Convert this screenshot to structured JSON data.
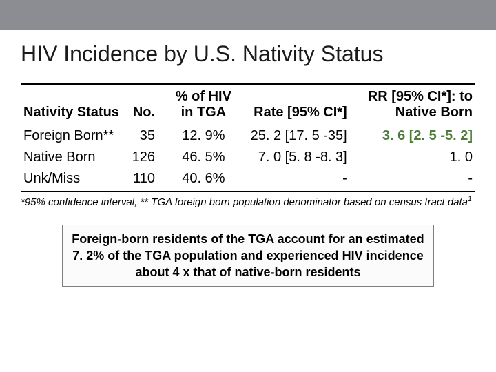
{
  "title": "HIV Incidence by U.S. Nativity Status",
  "topbar_color": "#8c8d92",
  "table": {
    "columns": [
      {
        "label": "Nativity Status",
        "align": "left"
      },
      {
        "label": "No.",
        "align": "right"
      },
      {
        "label": "% of HIV\nin TGA",
        "align": "center"
      },
      {
        "label": "Rate [95% CI*]",
        "align": "right"
      },
      {
        "label": "RR [95% CI*]: to\nNative Born",
        "align": "right"
      }
    ],
    "rows": [
      {
        "nativity": "Foreign Born**",
        "no": "35",
        "pct": "12. 9%",
        "rate": "25. 2 [17. 5 -35]",
        "rr": "3. 6 [2. 5 -5. 2]",
        "rr_highlight": true
      },
      {
        "nativity": "Native Born",
        "no": "126",
        "pct": "46. 5%",
        "rate": "7. 0 [5. 8 -8. 3]",
        "rr": "1. 0",
        "rr_highlight": false
      },
      {
        "nativity": "Unk/Miss",
        "no": "110",
        "pct": "40. 6%",
        "rate": "-",
        "rr": "-",
        "rr_highlight": false
      }
    ],
    "border_color": "#000000",
    "header_fontsize": 20,
    "cell_fontsize": 20
  },
  "footnote": "*95% confidence interval, ** TGA foreign born population denominator based on census tract data",
  "footnote_sup": "1",
  "callout": "Foreign-born residents of the TGA account for an estimated 7. 2% of the TGA population and experienced HIV incidence about 4 x that of native-born residents",
  "callout_style": {
    "background": "#fbfbfb",
    "border": "#7f7f7f",
    "font_size": 18,
    "font_weight": "bold"
  },
  "highlight_color": "#4e7b3a"
}
